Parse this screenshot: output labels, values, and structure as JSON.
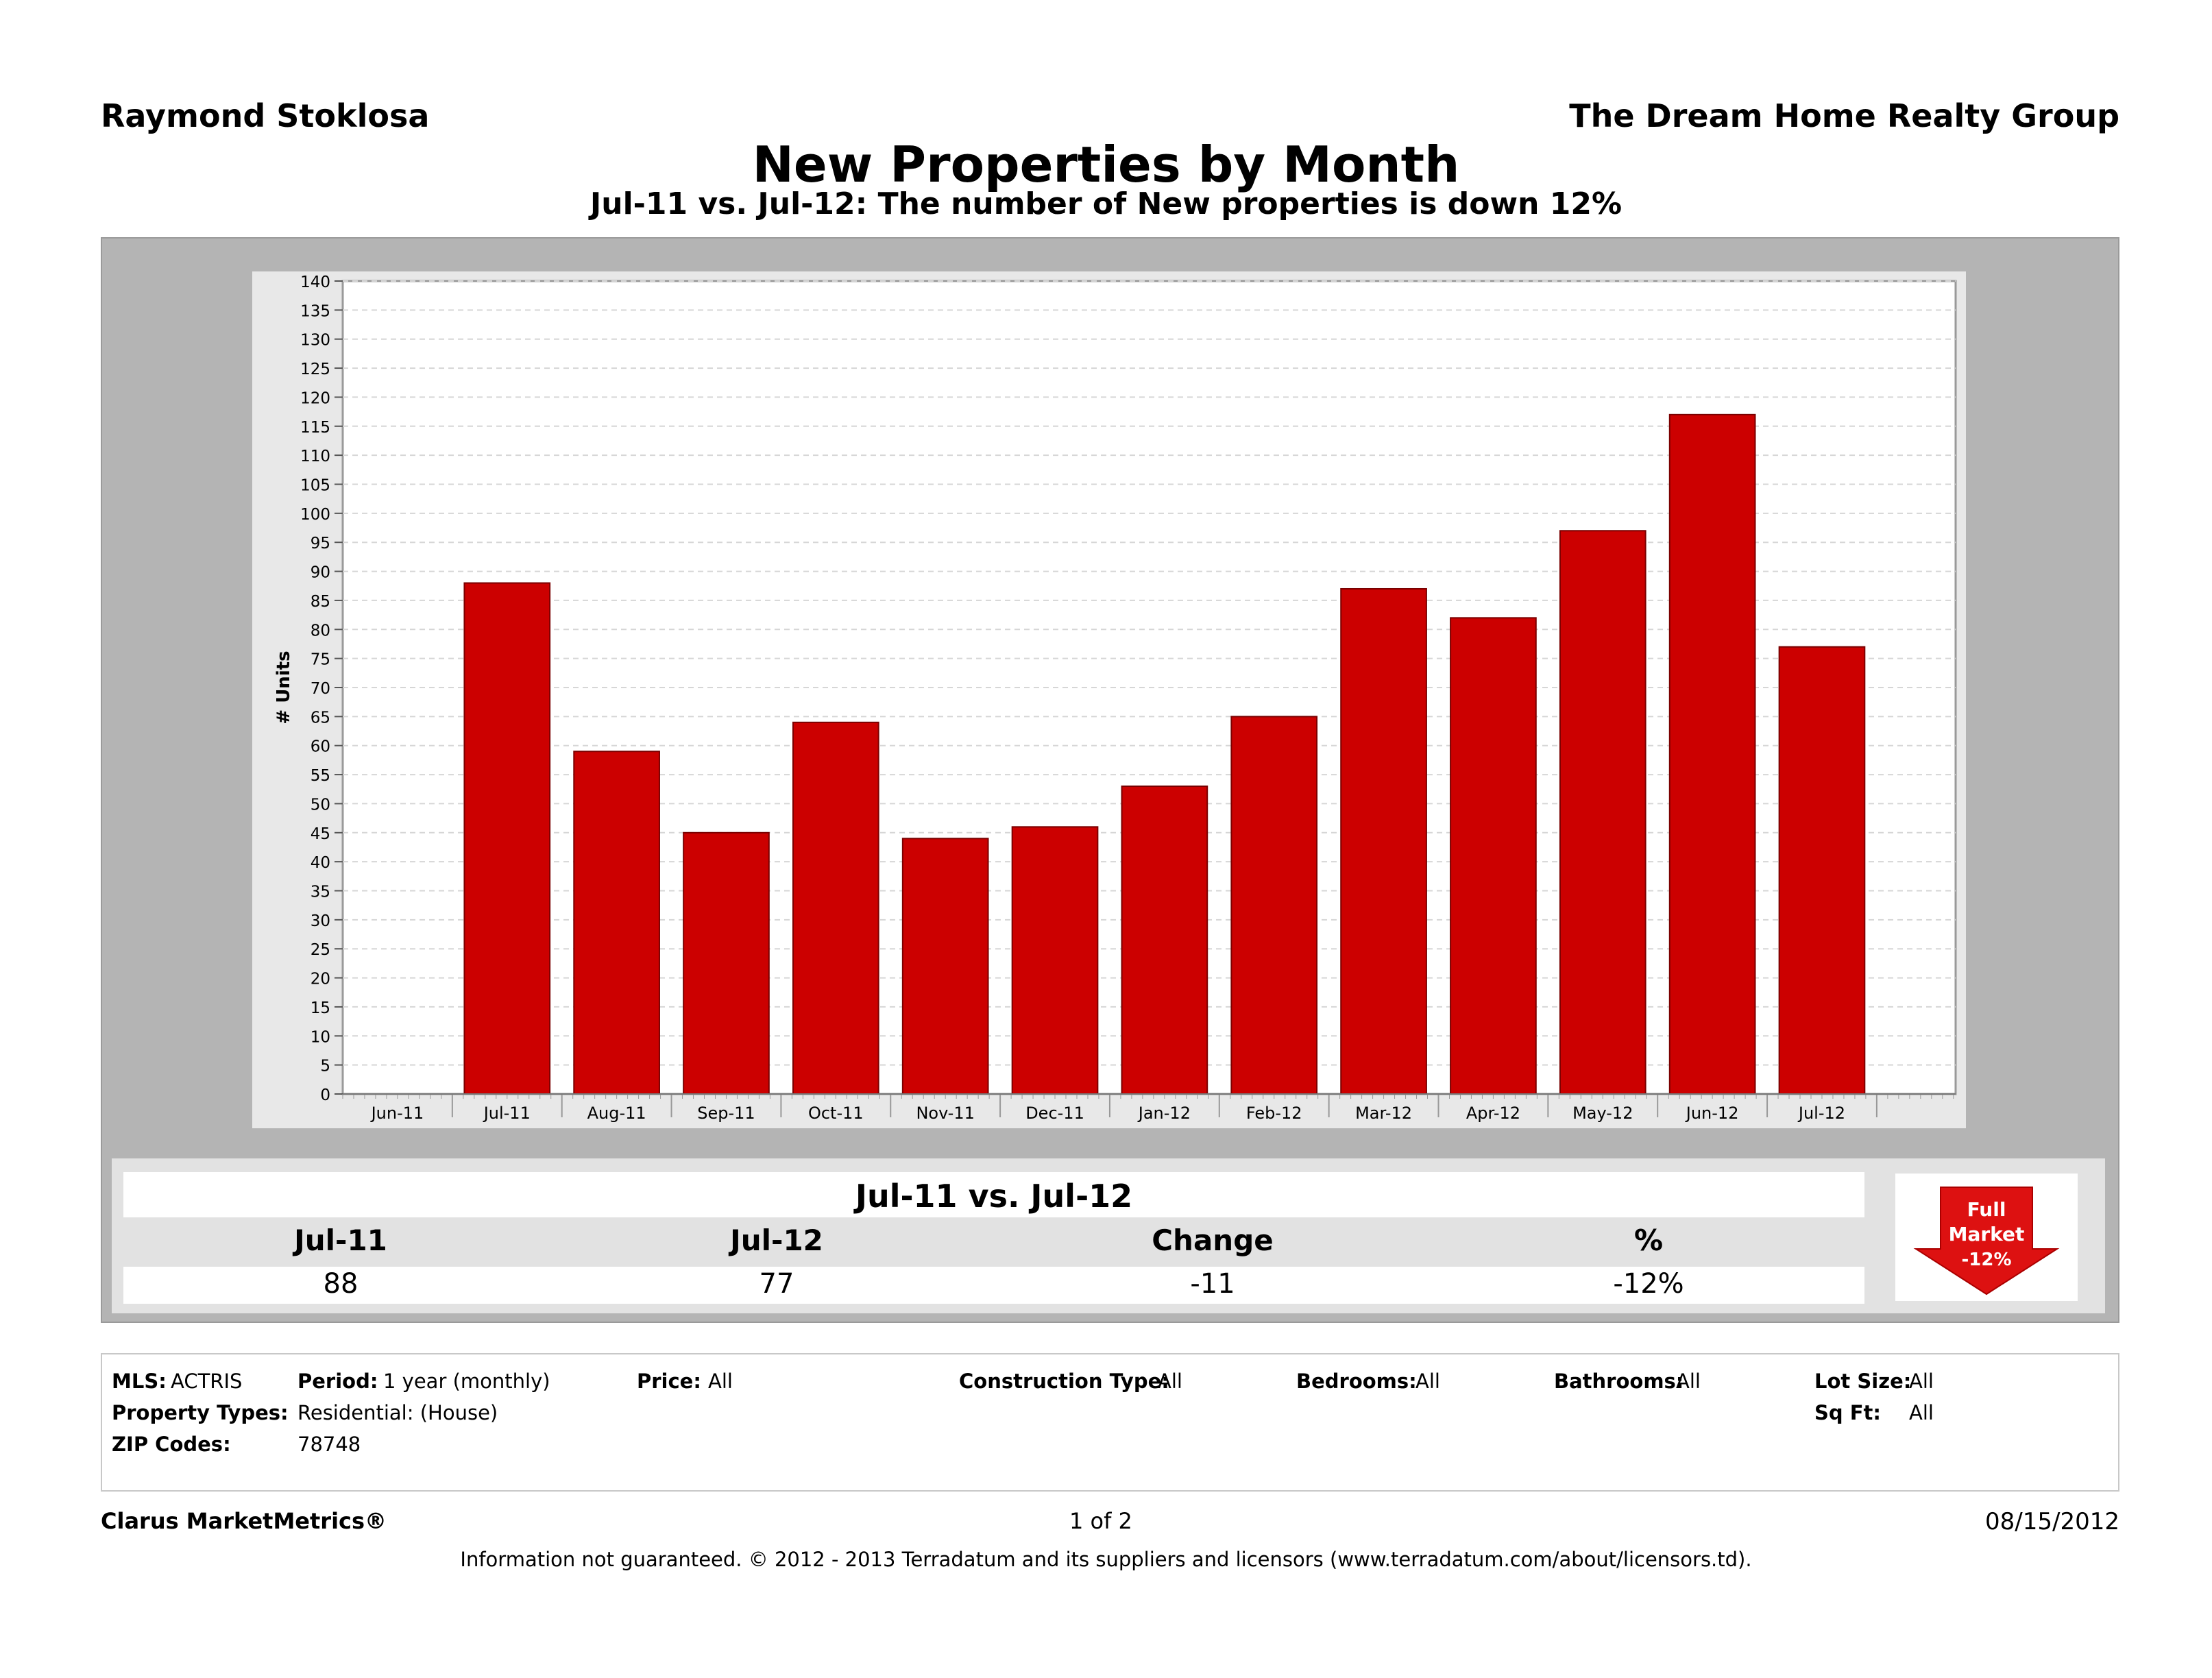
{
  "header": {
    "agent": "Raymond Stoklosa",
    "company": "The Dream Home Realty Group",
    "title": "New Properties by Month",
    "subtitle": "Jul-11 vs. Jul-12: The number of New properties is down 12%"
  },
  "chart_data": {
    "type": "bar",
    "ylabel": "# Units",
    "ylim": [
      0,
      140
    ],
    "ytick_step": 5,
    "grid": true,
    "bar_color": "#cc0000",
    "x_tick_labels": [
      "Jun-11",
      "Jul-11",
      "Aug-11",
      "Sep-11",
      "Oct-11",
      "Nov-11",
      "Dec-11",
      "Jan-12",
      "Feb-12",
      "Mar-12",
      "Apr-12",
      "May-12",
      "Jun-12",
      "Jul-12"
    ],
    "categories": [
      "Jul-11",
      "Aug-11",
      "Sep-11",
      "Oct-11",
      "Nov-11",
      "Dec-11",
      "Jan-12",
      "Feb-12",
      "Mar-12",
      "Apr-12",
      "May-12",
      "Jun-12",
      "Jul-12"
    ],
    "values": [
      88,
      59,
      45,
      64,
      44,
      46,
      53,
      65,
      87,
      82,
      97,
      117,
      77
    ]
  },
  "summary": {
    "title": "Jul-11 vs. Jul-12",
    "headers": [
      "Jul-11",
      "Jul-12",
      "Change",
      "%"
    ],
    "values": [
      "88",
      "77",
      "-11",
      "-12%"
    ]
  },
  "badge": {
    "line1": "Full",
    "line2": "Market",
    "line3": "-12%",
    "color": "#dd1111"
  },
  "filters": {
    "mls_label": "MLS:",
    "mls_value": "ACTRIS",
    "period_label": "Period:",
    "period_value": "1 year (monthly)",
    "price_label": "Price:",
    "price_value": "All",
    "construction_label": "Construction Type:",
    "construction_value": "All",
    "bedrooms_label": "Bedrooms:",
    "bedrooms_value": "All",
    "bathrooms_label": "Bathrooms:",
    "bathrooms_value": "All",
    "lotsize_label": "Lot Size:",
    "lotsize_value": "All",
    "proptypes_label": "Property Types:",
    "proptypes_value": "Residential: (House)",
    "sqft_label": "Sq Ft:",
    "sqft_value": "All",
    "zip_label": "ZIP Codes:",
    "zip_value": "78748"
  },
  "footer": {
    "brand": "Clarus MarketMetrics®",
    "page": "1 of 2",
    "date": "08/15/2012",
    "disclaimer": "Information not guaranteed.  © 2012 - 2013 Terradatum and its suppliers and licensors (www.terradatum.com/about/licensors.td)."
  }
}
